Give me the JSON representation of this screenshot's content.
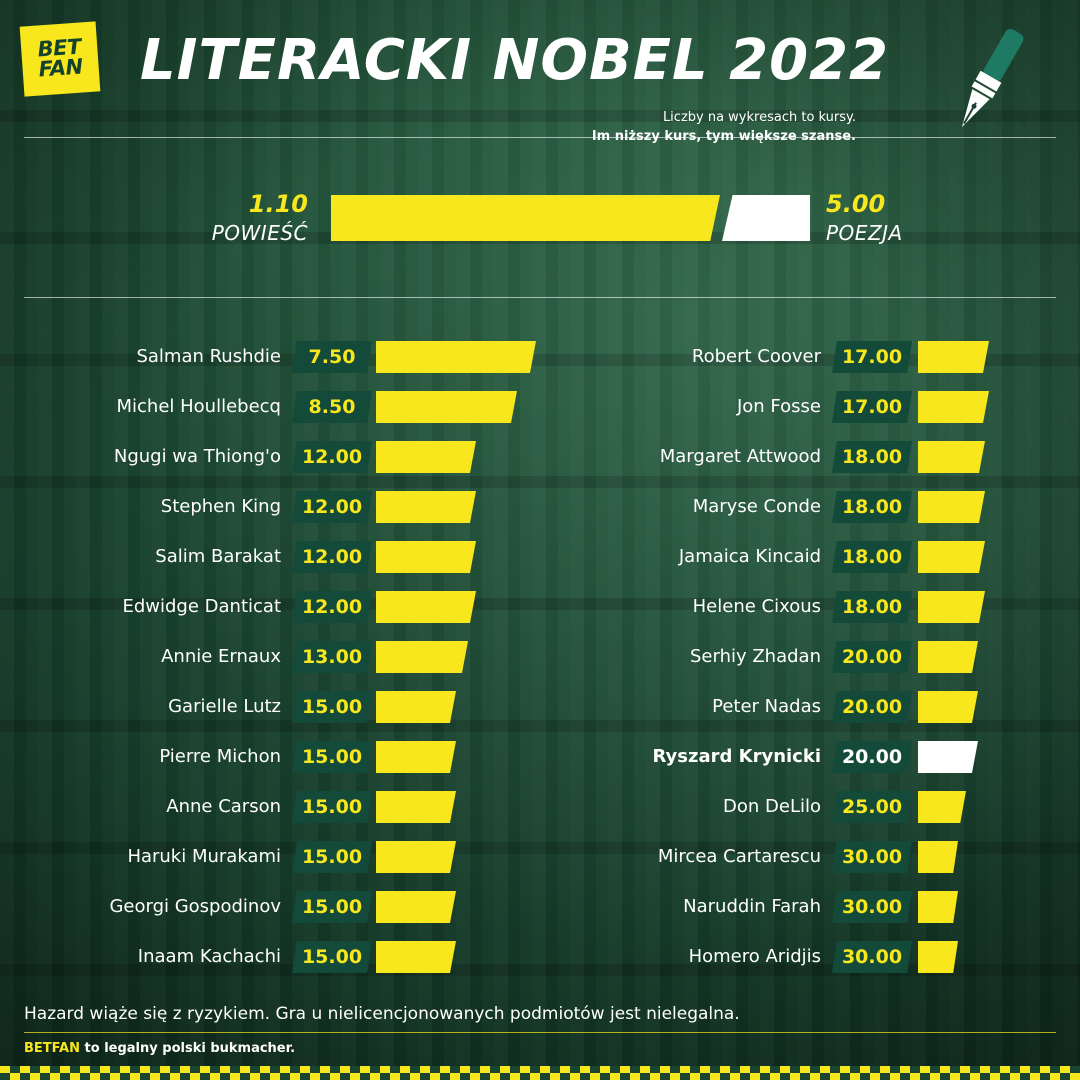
{
  "logo": {
    "line1": "BET",
    "line2": "FAN"
  },
  "title": "LITERACKI NOBEL 2022",
  "note": {
    "line1": "Liczby na wykresach to kursy.",
    "line2": "Im niższy kurs, tym większe szanse."
  },
  "comparison": {
    "left": {
      "value": "1.10",
      "label": "POWIEŚĆ"
    },
    "right": {
      "value": "5.00",
      "label": "POEZJA"
    }
  },
  "chart_data": {
    "type": "bar",
    "title": "LITERACKI NOBEL 2022",
    "colors": {
      "bar": "#f8e71c",
      "highlight": "#ffffff",
      "badge": "#134a3a"
    },
    "series": [
      {
        "values": [
          {
            "name": "Salman Rushdie",
            "odds": "7.50"
          },
          {
            "name": "Michel Houllebecq",
            "odds": "8.50"
          },
          {
            "name": "Ngugi wa Thiong'o",
            "odds": "12.00"
          },
          {
            "name": "Stephen King",
            "odds": "12.00"
          },
          {
            "name": "Salim Barakat",
            "odds": "12.00"
          },
          {
            "name": "Edwidge Danticat",
            "odds": "12.00"
          },
          {
            "name": "Annie Ernaux",
            "odds": "13.00"
          },
          {
            "name": "Garielle Lutz",
            "odds": "15.00"
          },
          {
            "name": "Pierre Michon",
            "odds": "15.00"
          },
          {
            "name": "Anne Carson",
            "odds": "15.00"
          },
          {
            "name": "Haruki Murakami",
            "odds": "15.00"
          },
          {
            "name": "Georgi Gospodinov",
            "odds": "15.00"
          },
          {
            "name": "Inaam Kachachi",
            "odds": "15.00"
          }
        ]
      },
      {
        "values": [
          {
            "name": "Robert Coover",
            "odds": "17.00"
          },
          {
            "name": "Jon Fosse",
            "odds": "17.00"
          },
          {
            "name": "Margaret Attwood",
            "odds": "18.00"
          },
          {
            "name": "Maryse Conde",
            "odds": "18.00"
          },
          {
            "name": "Jamaica Kincaid",
            "odds": "18.00"
          },
          {
            "name": "Helene Cixous",
            "odds": "18.00"
          },
          {
            "name": "Serhiy Zhadan",
            "odds": "20.00"
          },
          {
            "name": "Peter Nadas",
            "odds": "20.00"
          },
          {
            "name": "Ryszard Krynicki",
            "odds": "20.00",
            "highlight": true
          },
          {
            "name": "Don DeLilo",
            "odds": "25.00"
          },
          {
            "name": "Mircea Cartarescu",
            "odds": "30.00"
          },
          {
            "name": "Naruddin Farah",
            "odds": "30.00"
          },
          {
            "name": "Homero Aridjis",
            "odds": "30.00"
          }
        ]
      }
    ]
  },
  "footer": {
    "disclaimer": "Hazard wiąże się z ryzykiem. Gra u nielicencjonowanych podmiotów jest nielegalna.",
    "brand": "BETFAN",
    "legal": " to legalny polski bukmacher."
  }
}
